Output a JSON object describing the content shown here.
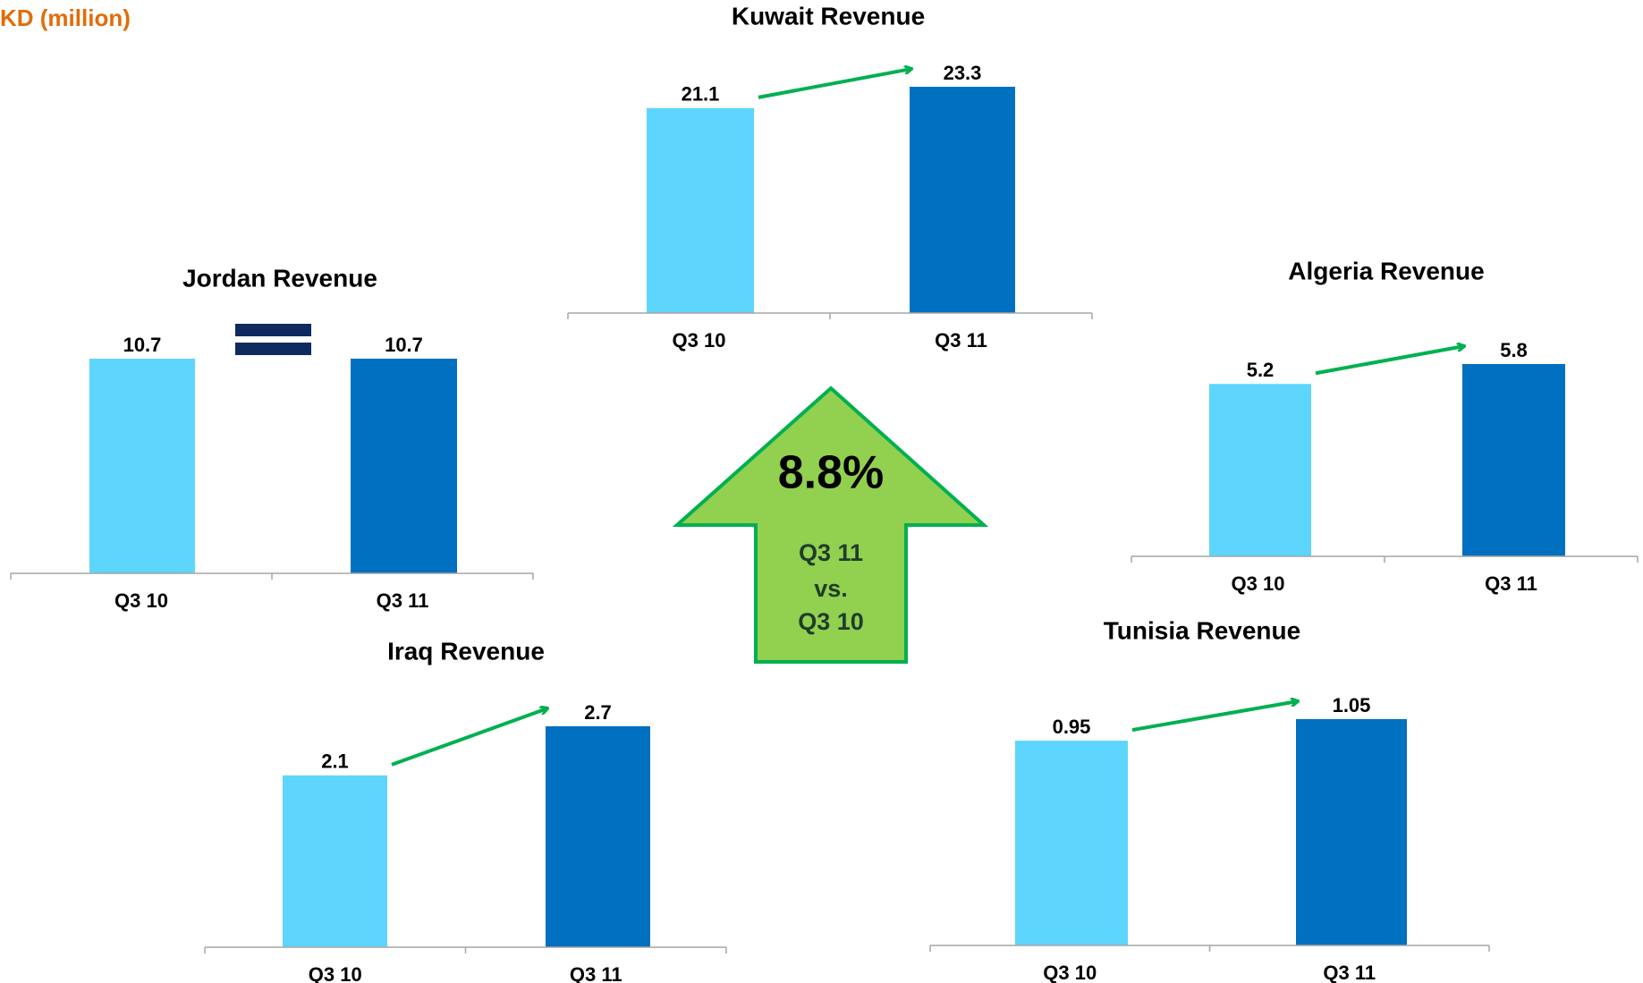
{
  "unit_label": "KD (million)",
  "callout": {
    "headline": "8.8%",
    "lines": [
      "Q3 11",
      "vs.",
      "Q3 10"
    ]
  },
  "chart_data": [
    {
      "type": "bar",
      "title": "Kuwait Revenue",
      "categories": [
        "Q3 10",
        "Q3 11"
      ],
      "values": [
        21.1,
        23.3
      ],
      "colors": [
        "#5dd5fc",
        "#0070c0"
      ]
    },
    {
      "type": "bar",
      "title": "Jordan Revenue",
      "categories": [
        "Q3 10",
        "Q3 11"
      ],
      "values": [
        10.7,
        10.7
      ],
      "colors": [
        "#5dd5fc",
        "#0070c0"
      ]
    },
    {
      "type": "bar",
      "title": "Algeria Revenue",
      "categories": [
        "Q3 10",
        "Q3 11"
      ],
      "values": [
        5.2,
        5.8
      ],
      "colors": [
        "#5dd5fc",
        "#0070c0"
      ]
    },
    {
      "type": "bar",
      "title": "Iraq Revenue",
      "categories": [
        "Q3 10",
        "Q3 11"
      ],
      "values": [
        2.1,
        2.7
      ],
      "colors": [
        "#5dd5fc",
        "#0070c0"
      ]
    },
    {
      "type": "bar",
      "title": "Tunisia Revenue",
      "categories": [
        "Q3 10",
        "Q3 11"
      ],
      "values": [
        0.95,
        1.05
      ],
      "colors": [
        "#5dd5fc",
        "#0070c0"
      ]
    }
  ]
}
